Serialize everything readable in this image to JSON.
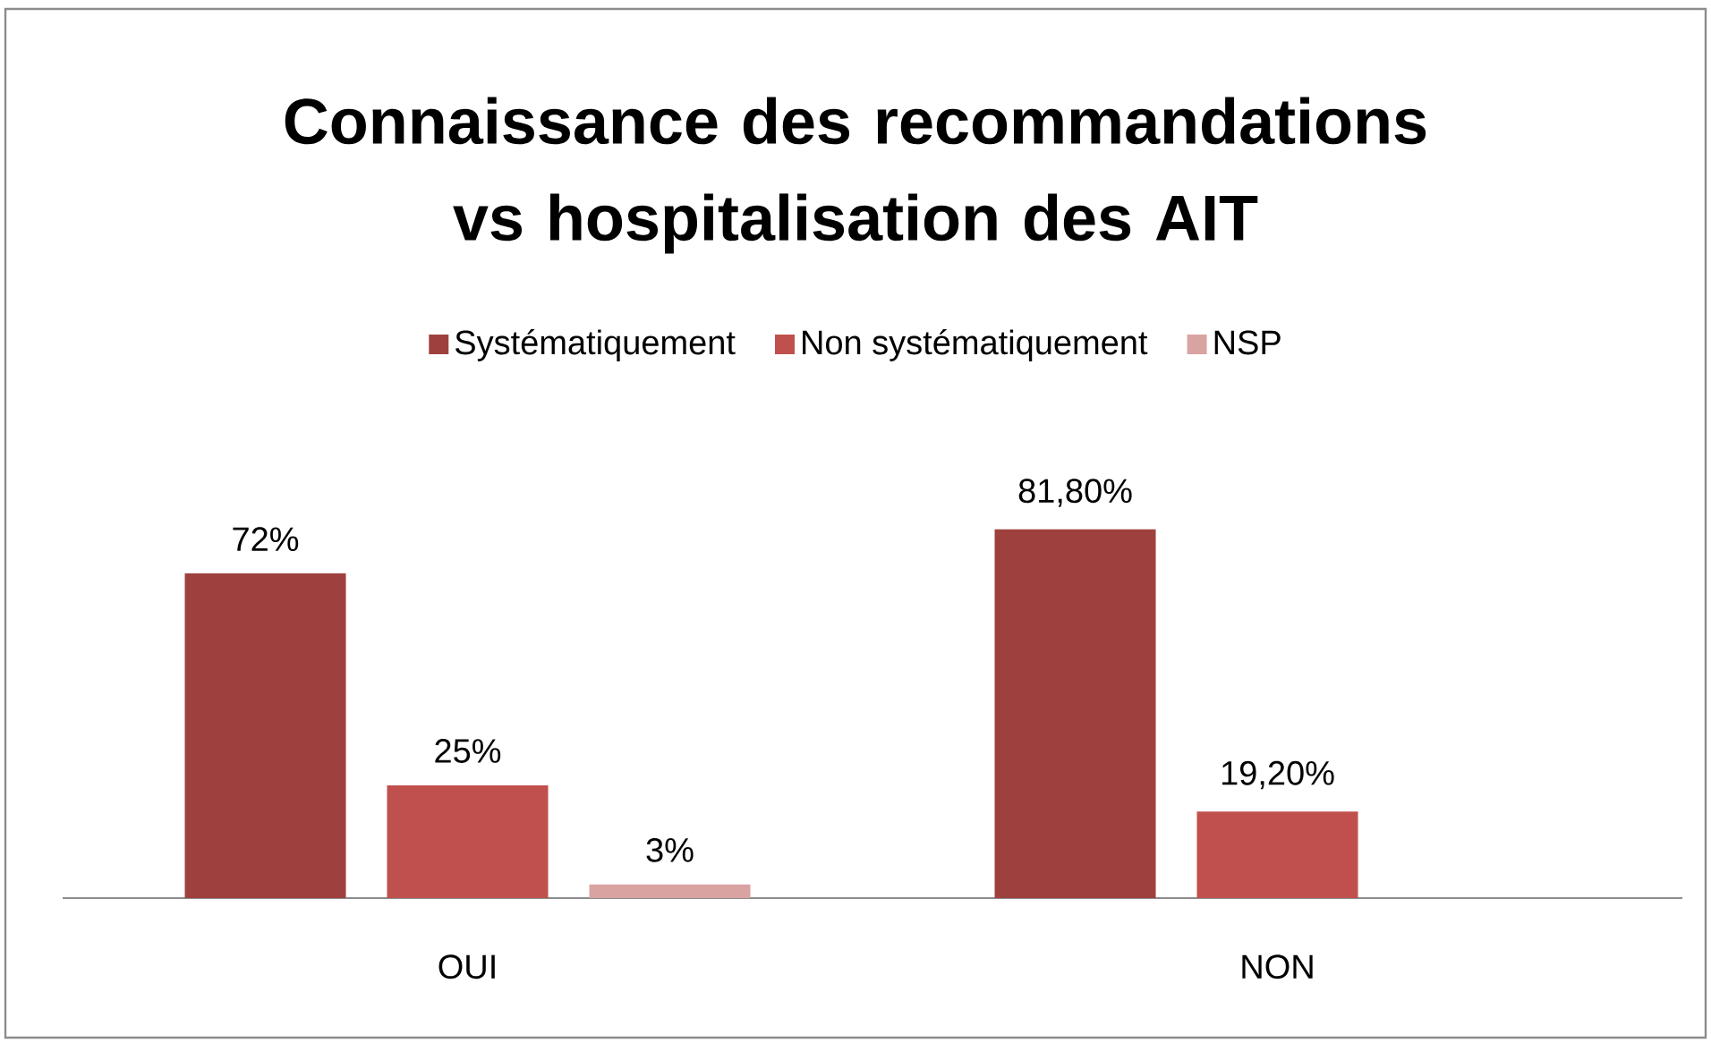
{
  "chart_data": {
    "type": "bar",
    "title": "Connaissance des recommandations vs hospitalisation des AIT",
    "categories": [
      "OUI",
      "NON"
    ],
    "series": [
      {
        "name": "Systématiquement",
        "color": "#9e413e",
        "values": [
          72,
          81.8
        ],
        "value_labels": [
          "72%",
          "81,80%"
        ]
      },
      {
        "name": "Non systématiquement",
        "color": "#c0504d",
        "values": [
          25,
          19.2
        ],
        "value_labels": [
          "25%",
          "19,20%"
        ]
      },
      {
        "name": "NSP",
        "color": "#d9a3a2",
        "values": [
          3,
          null
        ],
        "value_labels": [
          "3%",
          null
        ]
      }
    ],
    "legend": "top"
  }
}
